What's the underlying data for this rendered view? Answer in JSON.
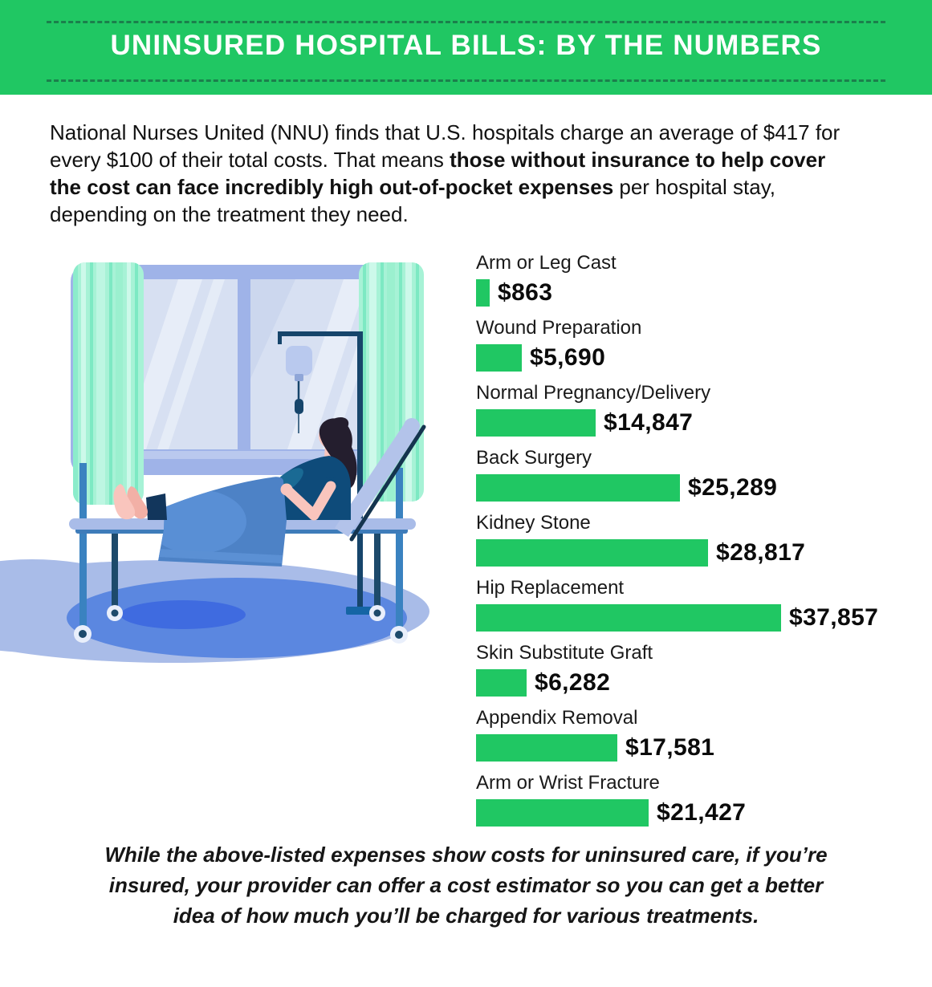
{
  "header": {
    "title": "UNINSURED HOSPITAL BILLS: BY THE NUMBERS"
  },
  "intro": {
    "segments": [
      {
        "text": "National Nurses United (NNU) finds that U.S. hospitals charge an average of $417 for every $100 of their total costs. That means ",
        "bold": false
      },
      {
        "text": "those without insurance to help cover the cost can face incredibly high out-of-pocket expenses",
        "bold": true
      },
      {
        "text": " per hospital stay, depending on the treatment they need.",
        "bold": false
      }
    ]
  },
  "chart_data": {
    "type": "bar",
    "orientation": "horizontal",
    "title": "",
    "unit": "USD",
    "categories": [
      "Arm or Leg Cast",
      "Wound Preparation",
      "Normal Pregnancy/Delivery",
      "Back Surgery",
      "Kidney Stone",
      "Hip Replacement",
      "Skin Substitute Graft",
      "Appendix Removal",
      "Arm or Wrist Fracture"
    ],
    "values": [
      863,
      5690,
      14847,
      25289,
      28817,
      37857,
      6282,
      17581,
      21427
    ],
    "value_labels": [
      "$863",
      "$5,690",
      "$14,847",
      "$25,289",
      "$28,817",
      "$37,857",
      "$6,282",
      "$17,581",
      "$21,427"
    ],
    "bar_color": "#20c763",
    "axis_max": 37857,
    "grid": false,
    "legend": false,
    "value_label_position": "right-of-bar"
  },
  "footer": {
    "note": "While the above-listed expenses show costs for uninsured care, if you’re insured, your provider can offer a cost estimator so you can get a better idea of how much you’ll be charged for various treatments."
  },
  "illustration": {
    "description": "Patient lying in a reclined hospital bed with an IV drip, next to a window with mint-green curtains, above a blue floor rug"
  },
  "colors": {
    "header_green": "#20c763",
    "dash_green": "#1b7f4c",
    "bar_green": "#20c763",
    "text_black": "#111111"
  }
}
